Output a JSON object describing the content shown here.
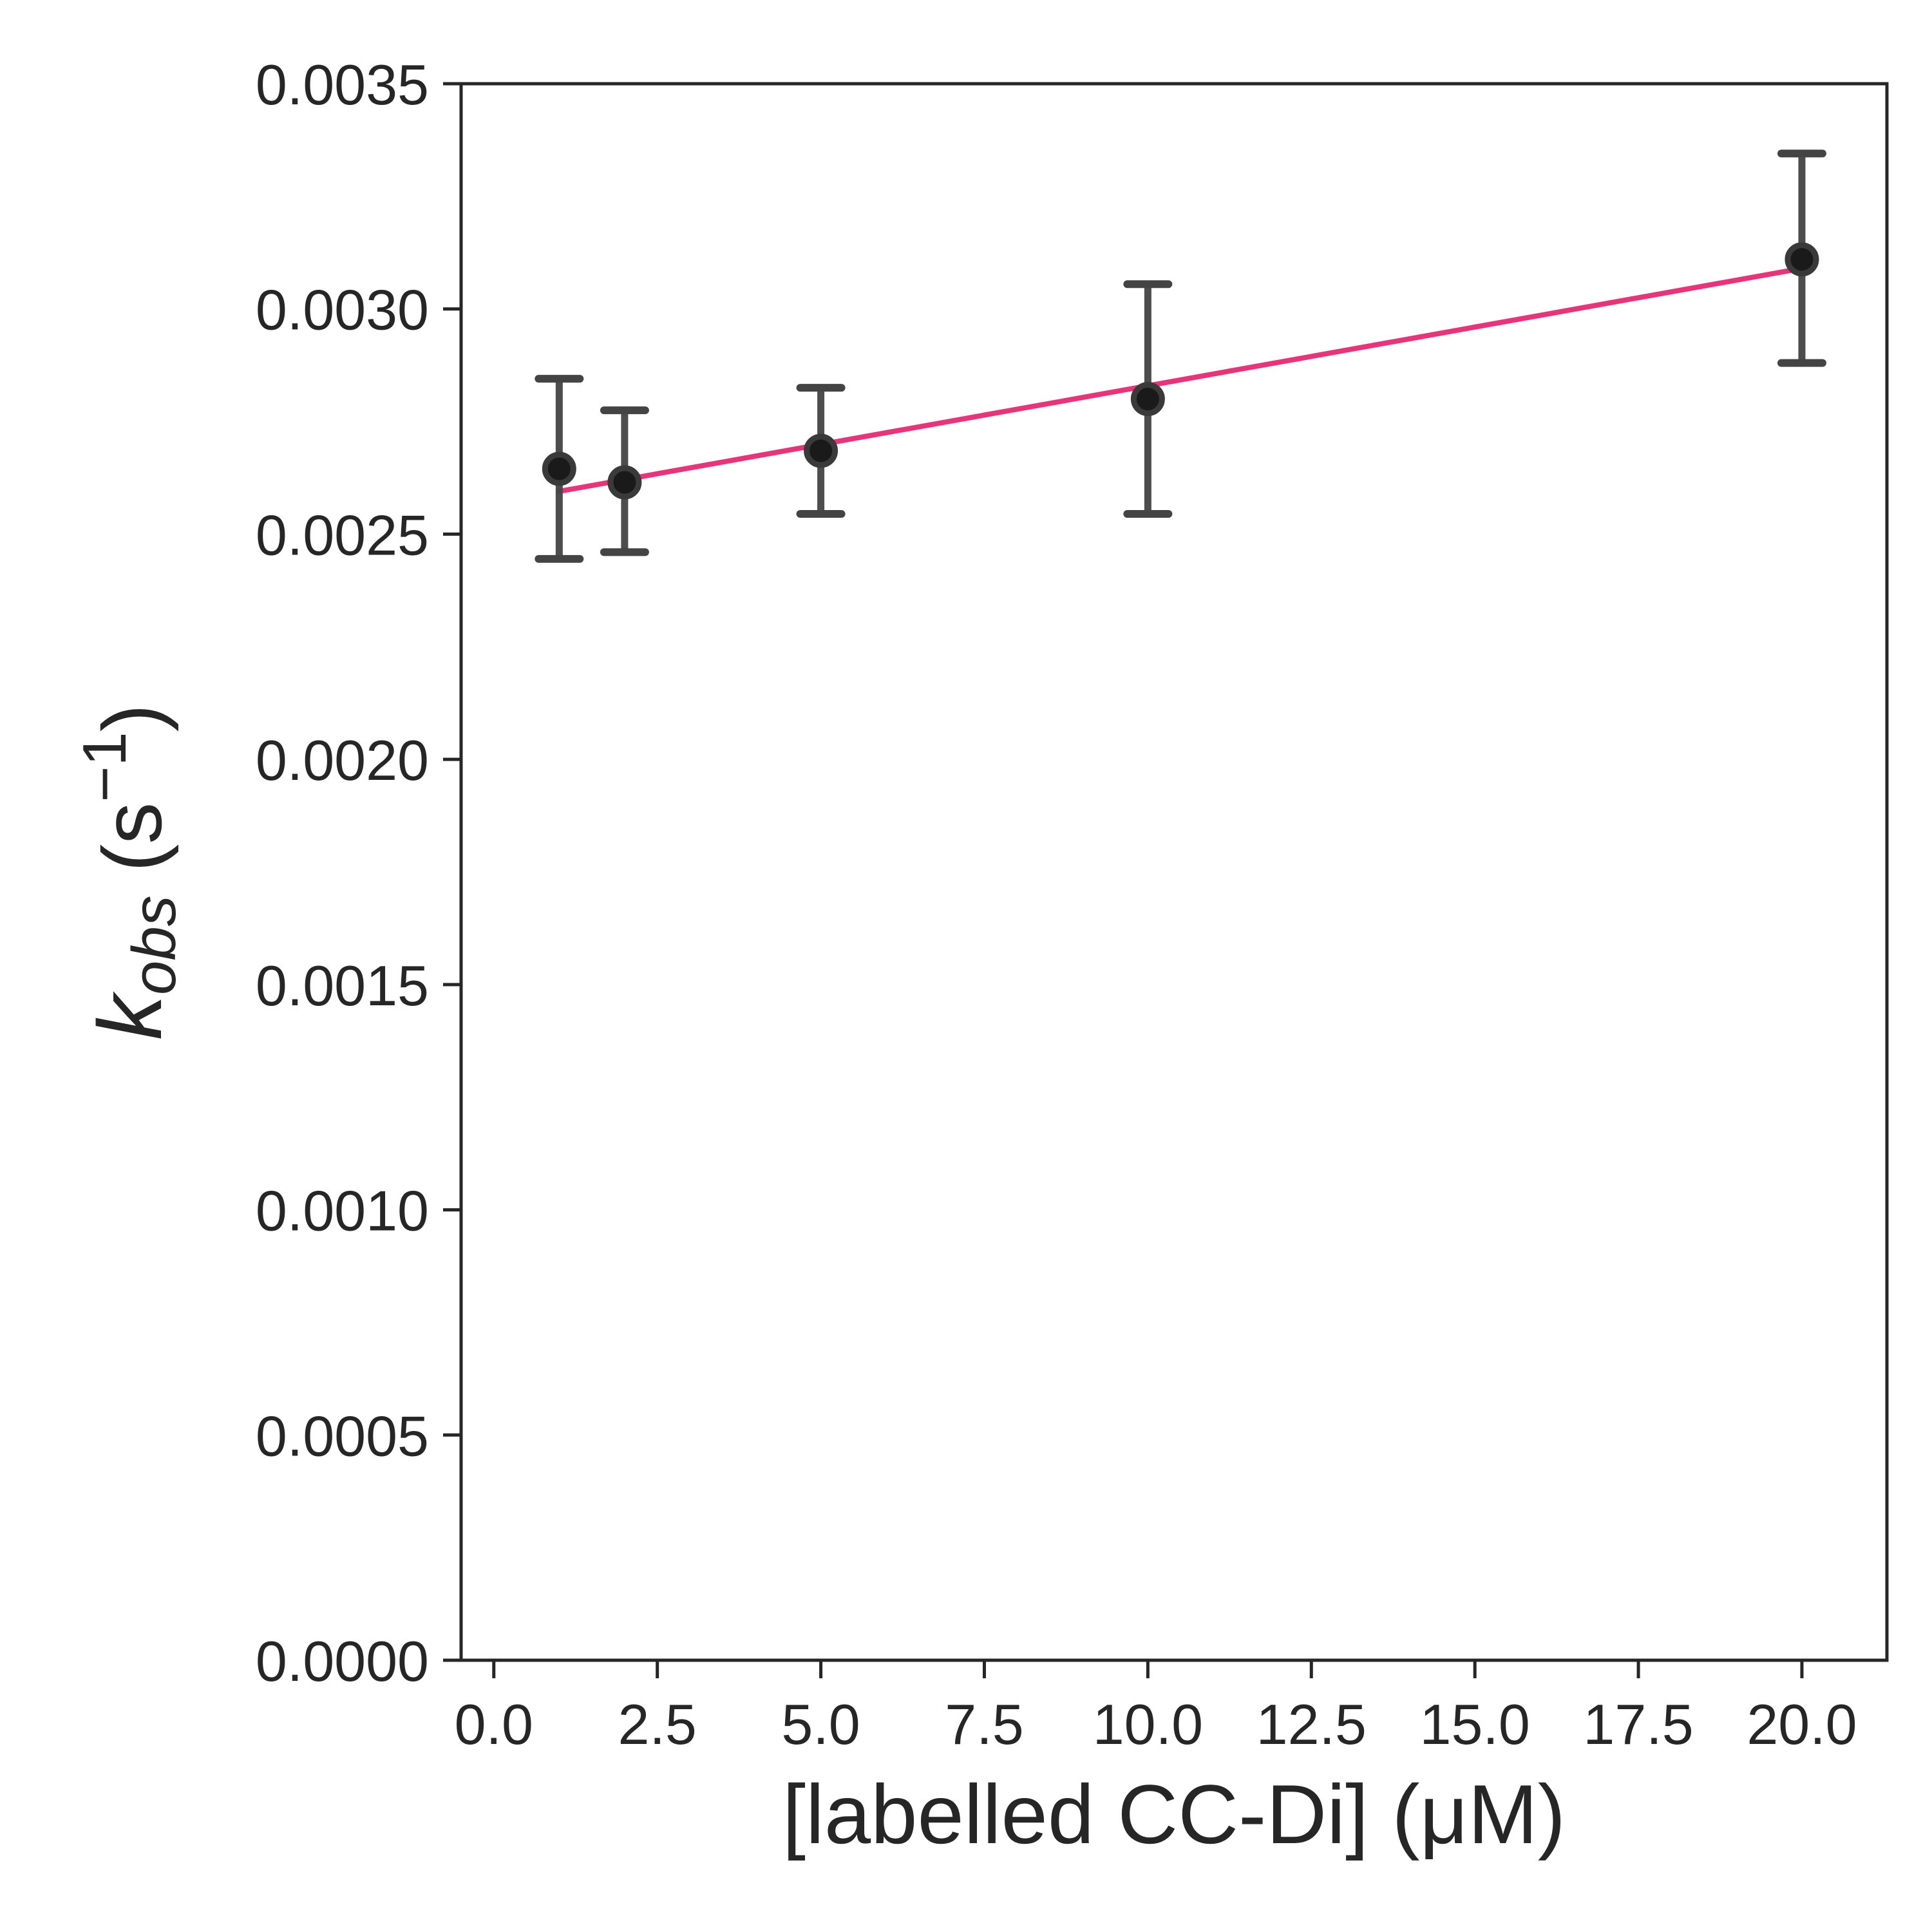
{
  "chart_data": {
    "type": "scatter",
    "xlabel": "[labelled CC-Di] (μM)",
    "ylabel": {
      "main": "k",
      "sub": "obs",
      "unit_open": " (s",
      "unit_sup": "−1",
      "unit_close": ")"
    },
    "xlim": [
      -0.5,
      21.3
    ],
    "ylim": [
      0,
      0.0035
    ],
    "x_ticks": [
      0,
      2.5,
      5,
      7.5,
      10,
      12.5,
      15,
      17.5,
      20
    ],
    "x_tick_labels": [
      "0.0",
      "2.5",
      "5.0",
      "7.5",
      "10.0",
      "12.5",
      "15.0",
      "17.5",
      "20.0"
    ],
    "y_ticks": [
      0,
      0.0005,
      0.001,
      0.0015,
      0.002,
      0.0025,
      0.003,
      0.0035
    ],
    "y_tick_labels": [
      "0.0000",
      "0.0005",
      "0.0010",
      "0.0015",
      "0.0020",
      "0.0025",
      "0.0030",
      "0.0035"
    ],
    "grid": false,
    "points": [
      {
        "x": 1,
        "y": 0.002645,
        "err_low": 0.002445,
        "err_high": 0.002845
      },
      {
        "x": 2,
        "y": 0.002615,
        "err_low": 0.00246,
        "err_high": 0.002775
      },
      {
        "x": 5,
        "y": 0.002685,
        "err_low": 0.002545,
        "err_high": 0.002825
      },
      {
        "x": 10,
        "y": 0.0028,
        "err_low": 0.002545,
        "err_high": 0.003055
      },
      {
        "x": 20,
        "y": 0.00311,
        "err_low": 0.00288,
        "err_high": 0.003345
      }
    ],
    "fit_line": {
      "x": [
        1,
        20
      ],
      "y": [
        0.002595,
        0.00309
      ]
    },
    "colors": {
      "fit": "#e8357a",
      "points": "#1a1a1a",
      "errorbars": "#444444",
      "axes": "#262626"
    }
  }
}
